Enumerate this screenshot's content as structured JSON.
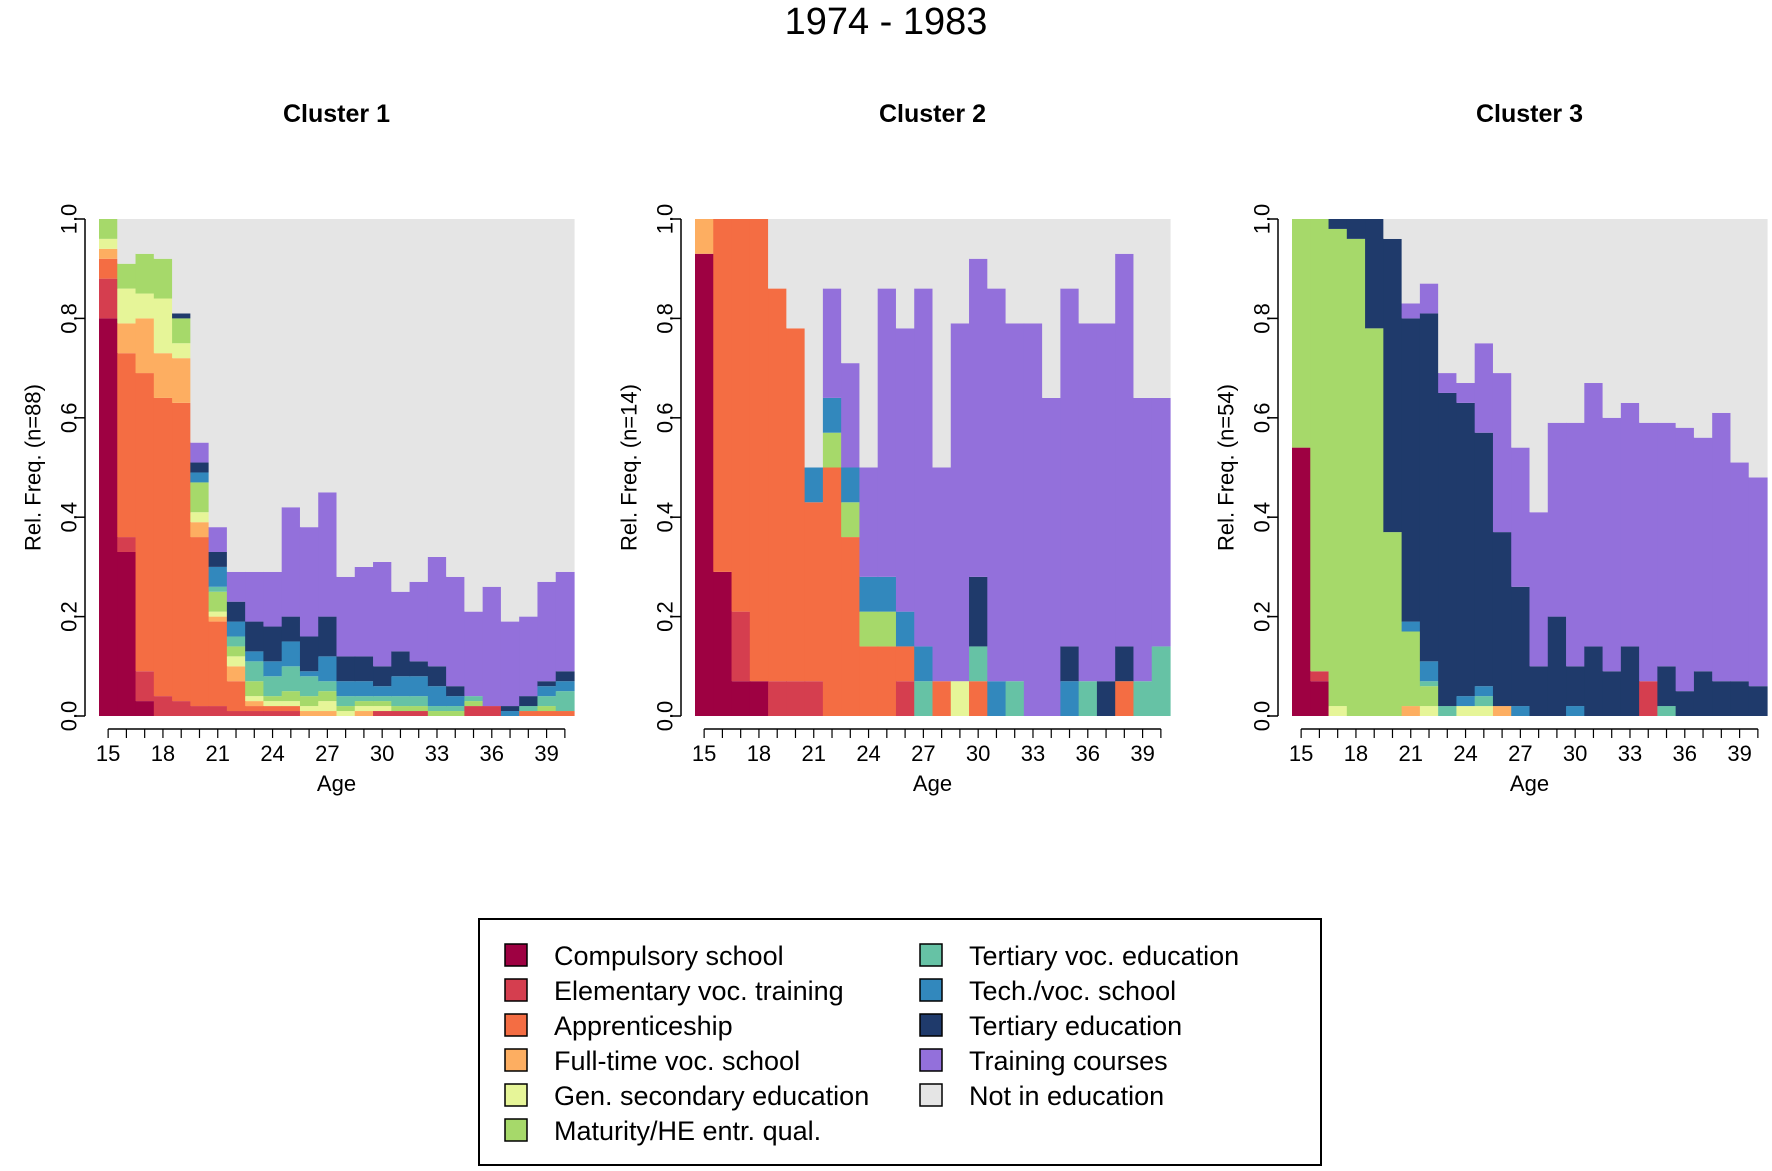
{
  "chart_data": {
    "type": "stacked-bar",
    "title": "1974 - 1983",
    "xlabel": "Age",
    "ylim": [
      0,
      1
    ],
    "yticks": [
      "0.0",
      "0.2",
      "0.4",
      "0.6",
      "0.8",
      "1.0"
    ],
    "ages": [
      15,
      16,
      17,
      18,
      19,
      20,
      21,
      22,
      23,
      24,
      25,
      26,
      27,
      28,
      29,
      30,
      31,
      32,
      33,
      34,
      35,
      36,
      37,
      38,
      39,
      40
    ],
    "xticks": [
      "15",
      "18",
      "21",
      "24",
      "27",
      "30",
      "33",
      "36",
      "39"
    ],
    "states": [
      {
        "name": "Compulsory school",
        "color": "#9e0142"
      },
      {
        "name": "Elementary voc. training",
        "color": "#d53e4f"
      },
      {
        "name": "Apprenticeship",
        "color": "#f46d43"
      },
      {
        "name": "Full-time voc. school",
        "color": "#fdae61"
      },
      {
        "name": "Gen. secondary education",
        "color": "#e6f598"
      },
      {
        "name": "Maturity/HE entr. qual.",
        "color": "#a6d96a"
      },
      {
        "name": "Tertiary voc. education",
        "color": "#66c2a5"
      },
      {
        "name": "Tech./voc. school",
        "color": "#3288bd"
      },
      {
        "name": "Tertiary education",
        "color": "#1f3a6b"
      },
      {
        "name": "Training courses",
        "color": "#9370db"
      },
      {
        "name": "Not in education",
        "color": "#e5e5e5"
      }
    ],
    "panels": [
      {
        "title": "Cluster 1",
        "ylabel": "Rel. Freq. (n=88)",
        "stacks": [
          [
            0.8,
            0.08,
            0.04,
            0.02,
            0.02,
            0.04
          ],
          [
            0.33,
            0.03,
            0.37,
            0.06,
            0.07,
            0.05,
            0.0,
            0.0,
            0.0,
            0.0
          ],
          [
            0.03,
            0.06,
            0.6,
            0.11,
            0.05,
            0.08,
            0.0,
            0.0,
            0.0,
            0.0
          ],
          [
            0.0,
            0.04,
            0.6,
            0.09,
            0.11,
            0.08,
            0.0,
            0.0,
            0.0,
            0.0
          ],
          [
            0.0,
            0.03,
            0.6,
            0.09,
            0.03,
            0.05,
            0.0,
            0.0,
            0.01
          ],
          [
            0.0,
            0.02,
            0.34,
            0.03,
            0.02,
            0.06,
            0.0,
            0.02,
            0.02,
            0.04
          ],
          [
            0.0,
            0.02,
            0.17,
            0.01,
            0.01,
            0.04,
            0.01,
            0.04,
            0.03,
            0.05
          ],
          [
            0.0,
            0.01,
            0.06,
            0.03,
            0.02,
            0.02,
            0.02,
            0.03,
            0.04,
            0.06
          ],
          [
            0.0,
            0.01,
            0.01,
            0.01,
            0.01,
            0.03,
            0.04,
            0.02,
            0.06,
            0.1
          ],
          [
            0.0,
            0.01,
            0.01,
            0.0,
            0.01,
            0.01,
            0.04,
            0.03,
            0.07,
            0.11
          ],
          [
            0.0,
            0.01,
            0.01,
            0.0,
            0.01,
            0.02,
            0.05,
            0.05,
            0.05,
            0.22
          ],
          [
            0.0,
            0.0,
            0.0,
            0.01,
            0.01,
            0.02,
            0.04,
            0.01,
            0.07,
            0.22
          ],
          [
            0.0,
            0.0,
            0.0,
            0.01,
            0.02,
            0.02,
            0.02,
            0.05,
            0.08,
            0.25
          ],
          [
            0.0,
            0.0,
            0.0,
            0.0,
            0.01,
            0.01,
            0.02,
            0.03,
            0.05,
            0.16
          ],
          [
            0.0,
            0.0,
            0.0,
            0.01,
            0.01,
            0.01,
            0.01,
            0.03,
            0.05,
            0.18
          ],
          [
            0.0,
            0.01,
            0.0,
            0.0,
            0.01,
            0.01,
            0.01,
            0.02,
            0.04,
            0.21
          ],
          [
            0.0,
            0.01,
            0.0,
            0.0,
            0.0,
            0.01,
            0.02,
            0.04,
            0.05,
            0.12
          ],
          [
            0.0,
            0.01,
            0.0,
            0.0,
            0.0,
            0.01,
            0.02,
            0.04,
            0.03,
            0.16
          ],
          [
            0.0,
            0.0,
            0.0,
            0.0,
            0.0,
            0.01,
            0.01,
            0.04,
            0.04,
            0.22
          ],
          [
            0.0,
            0.0,
            0.0,
            0.0,
            0.0,
            0.01,
            0.01,
            0.02,
            0.02,
            0.22
          ],
          [
            0.0,
            0.02,
            0.0,
            0.0,
            0.0,
            0.01,
            0.01,
            0.0,
            0.0,
            0.17
          ],
          [
            0.0,
            0.02,
            0.0,
            0.0,
            0.0,
            0.0,
            0.0,
            0.0,
            0.0,
            0.24
          ],
          [
            0.0,
            0.0,
            0.0,
            0.0,
            0.0,
            0.0,
            0.0,
            0.01,
            0.01,
            0.17
          ],
          [
            0.0,
            0.0,
            0.01,
            0.0,
            0.0,
            0.0,
            0.01,
            0.0,
            0.02,
            0.16
          ],
          [
            0.0,
            0.0,
            0.01,
            0.0,
            0.0,
            0.01,
            0.02,
            0.02,
            0.01,
            0.2
          ],
          [
            0.0,
            0.0,
            0.01,
            0.0,
            0.0,
            0.0,
            0.04,
            0.02,
            0.02,
            0.2
          ]
        ]
      },
      {
        "title": "Cluster 2",
        "ylabel": "Rel. Freq. (n=14)",
        "stacks": [
          [
            0.93,
            0.0,
            0.0,
            0.07
          ],
          [
            0.29,
            0.0,
            0.71
          ],
          [
            0.07,
            0.14,
            0.79
          ],
          [
            0.07,
            0.0,
            0.93
          ],
          [
            0.0,
            0.07,
            0.79
          ],
          [
            0.0,
            0.07,
            0.71
          ],
          [
            0.0,
            0.07,
            0.36,
            0.0,
            0.0,
            0.0,
            0.0,
            0.07,
            0.0,
            0.0
          ],
          [
            0.0,
            0.0,
            0.5,
            0.0,
            0.0,
            0.07,
            0.0,
            0.07,
            0.0,
            0.22
          ],
          [
            0.0,
            0.0,
            0.36,
            0.0,
            0.0,
            0.07,
            0.0,
            0.07,
            0.0,
            0.21
          ],
          [
            0.0,
            0.0,
            0.14,
            0.0,
            0.0,
            0.07,
            0.0,
            0.07,
            0.0,
            0.22
          ],
          [
            0.0,
            0.0,
            0.14,
            0.0,
            0.0,
            0.07,
            0.0,
            0.07,
            0.0,
            0.58
          ],
          [
            0.0,
            0.07,
            0.07,
            0.0,
            0.0,
            0.0,
            0.0,
            0.07,
            0.0,
            0.57
          ],
          [
            0.0,
            0.0,
            0.0,
            0.0,
            0.0,
            0.0,
            0.07,
            0.07,
            0.0,
            0.72
          ],
          [
            0.0,
            0.0,
            0.07,
            0.0,
            0.0,
            0.0,
            0.0,
            0.0,
            0.0,
            0.43
          ],
          [
            0.0,
            0.0,
            0.0,
            0.0,
            0.07,
            0.0,
            0.0,
            0.0,
            0.0,
            0.72
          ],
          [
            0.0,
            0.0,
            0.07,
            0.0,
            0.0,
            0.0,
            0.07,
            0.0,
            0.14,
            0.64
          ],
          [
            0.0,
            0.0,
            0.0,
            0.0,
            0.0,
            0.0,
            0.0,
            0.07,
            0.0,
            0.79
          ],
          [
            0.0,
            0.0,
            0.0,
            0.0,
            0.0,
            0.0,
            0.07,
            0.0,
            0.0,
            0.72
          ],
          [
            0.0,
            0.0,
            0.0,
            0.0,
            0.0,
            0.0,
            0.0,
            0.0,
            0.0,
            0.79
          ],
          [
            0.0,
            0.0,
            0.0,
            0.0,
            0.0,
            0.0,
            0.0,
            0.0,
            0.0,
            0.64
          ],
          [
            0.0,
            0.0,
            0.0,
            0.0,
            0.0,
            0.0,
            0.0,
            0.07,
            0.07,
            0.72
          ],
          [
            0.0,
            0.0,
            0.0,
            0.0,
            0.0,
            0.0,
            0.07,
            0.0,
            0.0,
            0.72
          ],
          [
            0.0,
            0.0,
            0.0,
            0.0,
            0.0,
            0.0,
            0.0,
            0.0,
            0.07,
            0.72
          ],
          [
            0.0,
            0.0,
            0.07,
            0.0,
            0.0,
            0.0,
            0.0,
            0.0,
            0.07,
            0.79
          ],
          [
            0.0,
            0.0,
            0.0,
            0.0,
            0.0,
            0.0,
            0.07,
            0.0,
            0.0,
            0.57
          ],
          [
            0.0,
            0.0,
            0.0,
            0.0,
            0.0,
            0.0,
            0.14,
            0.0,
            0.0,
            0.5
          ]
        ]
      },
      {
        "title": "Cluster 3",
        "ylabel": "Rel. Freq. (n=54)",
        "stacks": [
          [
            0.54,
            0.0,
            0.0,
            0.0,
            0.0,
            0.46
          ],
          [
            0.07,
            0.02,
            0.0,
            0.0,
            0.0,
            0.91
          ],
          [
            0.0,
            0.0,
            0.0,
            0.0,
            0.02,
            0.96,
            0.0,
            0.0,
            0.02
          ],
          [
            0.0,
            0.0,
            0.0,
            0.0,
            0.0,
            0.96,
            0.0,
            0.0,
            0.04
          ],
          [
            0.0,
            0.0,
            0.0,
            0.0,
            0.0,
            0.78,
            0.0,
            0.0,
            0.22
          ],
          [
            0.0,
            0.0,
            0.0,
            0.0,
            0.0,
            0.37,
            0.0,
            0.0,
            0.59
          ],
          [
            0.0,
            0.0,
            0.0,
            0.02,
            0.0,
            0.15,
            0.0,
            0.02,
            0.61,
            0.03
          ],
          [
            0.0,
            0.0,
            0.0,
            0.0,
            0.02,
            0.04,
            0.01,
            0.04,
            0.7,
            0.06
          ],
          [
            0.0,
            0.0,
            0.0,
            0.0,
            0.0,
            0.0,
            0.02,
            0.0,
            0.63,
            0.04
          ],
          [
            0.0,
            0.0,
            0.0,
            0.0,
            0.02,
            0.0,
            0.0,
            0.02,
            0.59,
            0.04
          ],
          [
            0.0,
            0.0,
            0.0,
            0.0,
            0.02,
            0.0,
            0.02,
            0.02,
            0.51,
            0.18
          ],
          [
            0.0,
            0.0,
            0.0,
            0.02,
            0.0,
            0.0,
            0.0,
            0.0,
            0.35,
            0.32
          ],
          [
            0.0,
            0.0,
            0.0,
            0.0,
            0.0,
            0.0,
            0.0,
            0.02,
            0.24,
            0.28
          ],
          [
            0.0,
            0.0,
            0.0,
            0.0,
            0.0,
            0.0,
            0.0,
            0.0,
            0.1,
            0.31
          ],
          [
            0.0,
            0.0,
            0.0,
            0.0,
            0.0,
            0.0,
            0.0,
            0.0,
            0.2,
            0.39
          ],
          [
            0.0,
            0.0,
            0.0,
            0.0,
            0.0,
            0.0,
            0.0,
            0.02,
            0.08,
            0.49
          ],
          [
            0.0,
            0.0,
            0.0,
            0.0,
            0.0,
            0.0,
            0.0,
            0.0,
            0.14,
            0.53
          ],
          [
            0.0,
            0.0,
            0.0,
            0.0,
            0.0,
            0.0,
            0.0,
            0.0,
            0.09,
            0.51
          ],
          [
            0.0,
            0.0,
            0.0,
            0.0,
            0.0,
            0.0,
            0.0,
            0.0,
            0.14,
            0.49
          ],
          [
            0.0,
            0.07,
            0.0,
            0.0,
            0.0,
            0.0,
            0.0,
            0.0,
            0.0,
            0.52
          ],
          [
            0.0,
            0.0,
            0.0,
            0.0,
            0.0,
            0.0,
            0.02,
            0.0,
            0.08,
            0.49
          ],
          [
            0.0,
            0.0,
            0.0,
            0.0,
            0.0,
            0.0,
            0.0,
            0.0,
            0.05,
            0.53
          ],
          [
            0.0,
            0.0,
            0.0,
            0.0,
            0.0,
            0.0,
            0.0,
            0.0,
            0.09,
            0.47
          ],
          [
            0.0,
            0.0,
            0.0,
            0.0,
            0.0,
            0.0,
            0.0,
            0.0,
            0.07,
            0.54
          ],
          [
            0.0,
            0.0,
            0.0,
            0.0,
            0.0,
            0.0,
            0.0,
            0.0,
            0.07,
            0.44
          ],
          [
            0.0,
            0.0,
            0.0,
            0.0,
            0.0,
            0.0,
            0.0,
            0.0,
            0.06,
            0.42
          ]
        ]
      }
    ]
  }
}
